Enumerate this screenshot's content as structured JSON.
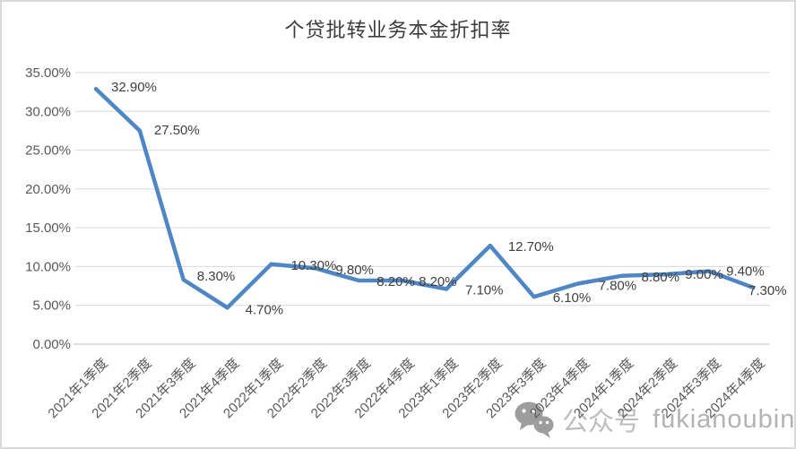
{
  "title": "个贷批转业务本金折扣率",
  "watermark": {
    "icon": "wechat-icon",
    "text": "公众号",
    "account": "fukianoubin"
  },
  "chart_data": {
    "type": "line",
    "title": "个贷批转业务本金折扣率",
    "categories": [
      "2021年1季度",
      "2021年2季度",
      "2021年3季度",
      "2021年4季度",
      "2022年1季度",
      "2022年2季度",
      "2022年3季度",
      "2022年4季度",
      "2023年1季度",
      "2023年2季度",
      "2023年3季度",
      "2023年4季度",
      "2024年1季度",
      "2024年2季度",
      "2024年3季度",
      "2024年4季度"
    ],
    "values": [
      32.9,
      27.5,
      8.3,
      4.7,
      10.3,
      9.8,
      8.2,
      8.2,
      7.1,
      12.7,
      6.1,
      7.8,
      8.8,
      9.0,
      9.4,
      7.3
    ],
    "data_labels": [
      "32.90%",
      "27.50%",
      "8.30%",
      "4.70%",
      "10.30%",
      "9.80%",
      "8.20%",
      "8.20%",
      "7.10%",
      "12.70%",
      "6.10%",
      "7.80%",
      "8.80%",
      "9.00%",
      "9.40%",
      "7.30%"
    ],
    "y_tick_labels": [
      "0.00%",
      "5.00%",
      "10.00%",
      "15.00%",
      "20.00%",
      "25.00%",
      "30.00%",
      "35.00%"
    ],
    "ylim": [
      0,
      35
    ],
    "y_step": 5,
    "grid": true,
    "legend": "none",
    "line_color": "#4E86C6",
    "gridline_color": "#D9D9D9",
    "axis_line_color": "#BFBFBF",
    "data_label_color": "#3F3F3F",
    "tick_label_color": "#595959"
  }
}
